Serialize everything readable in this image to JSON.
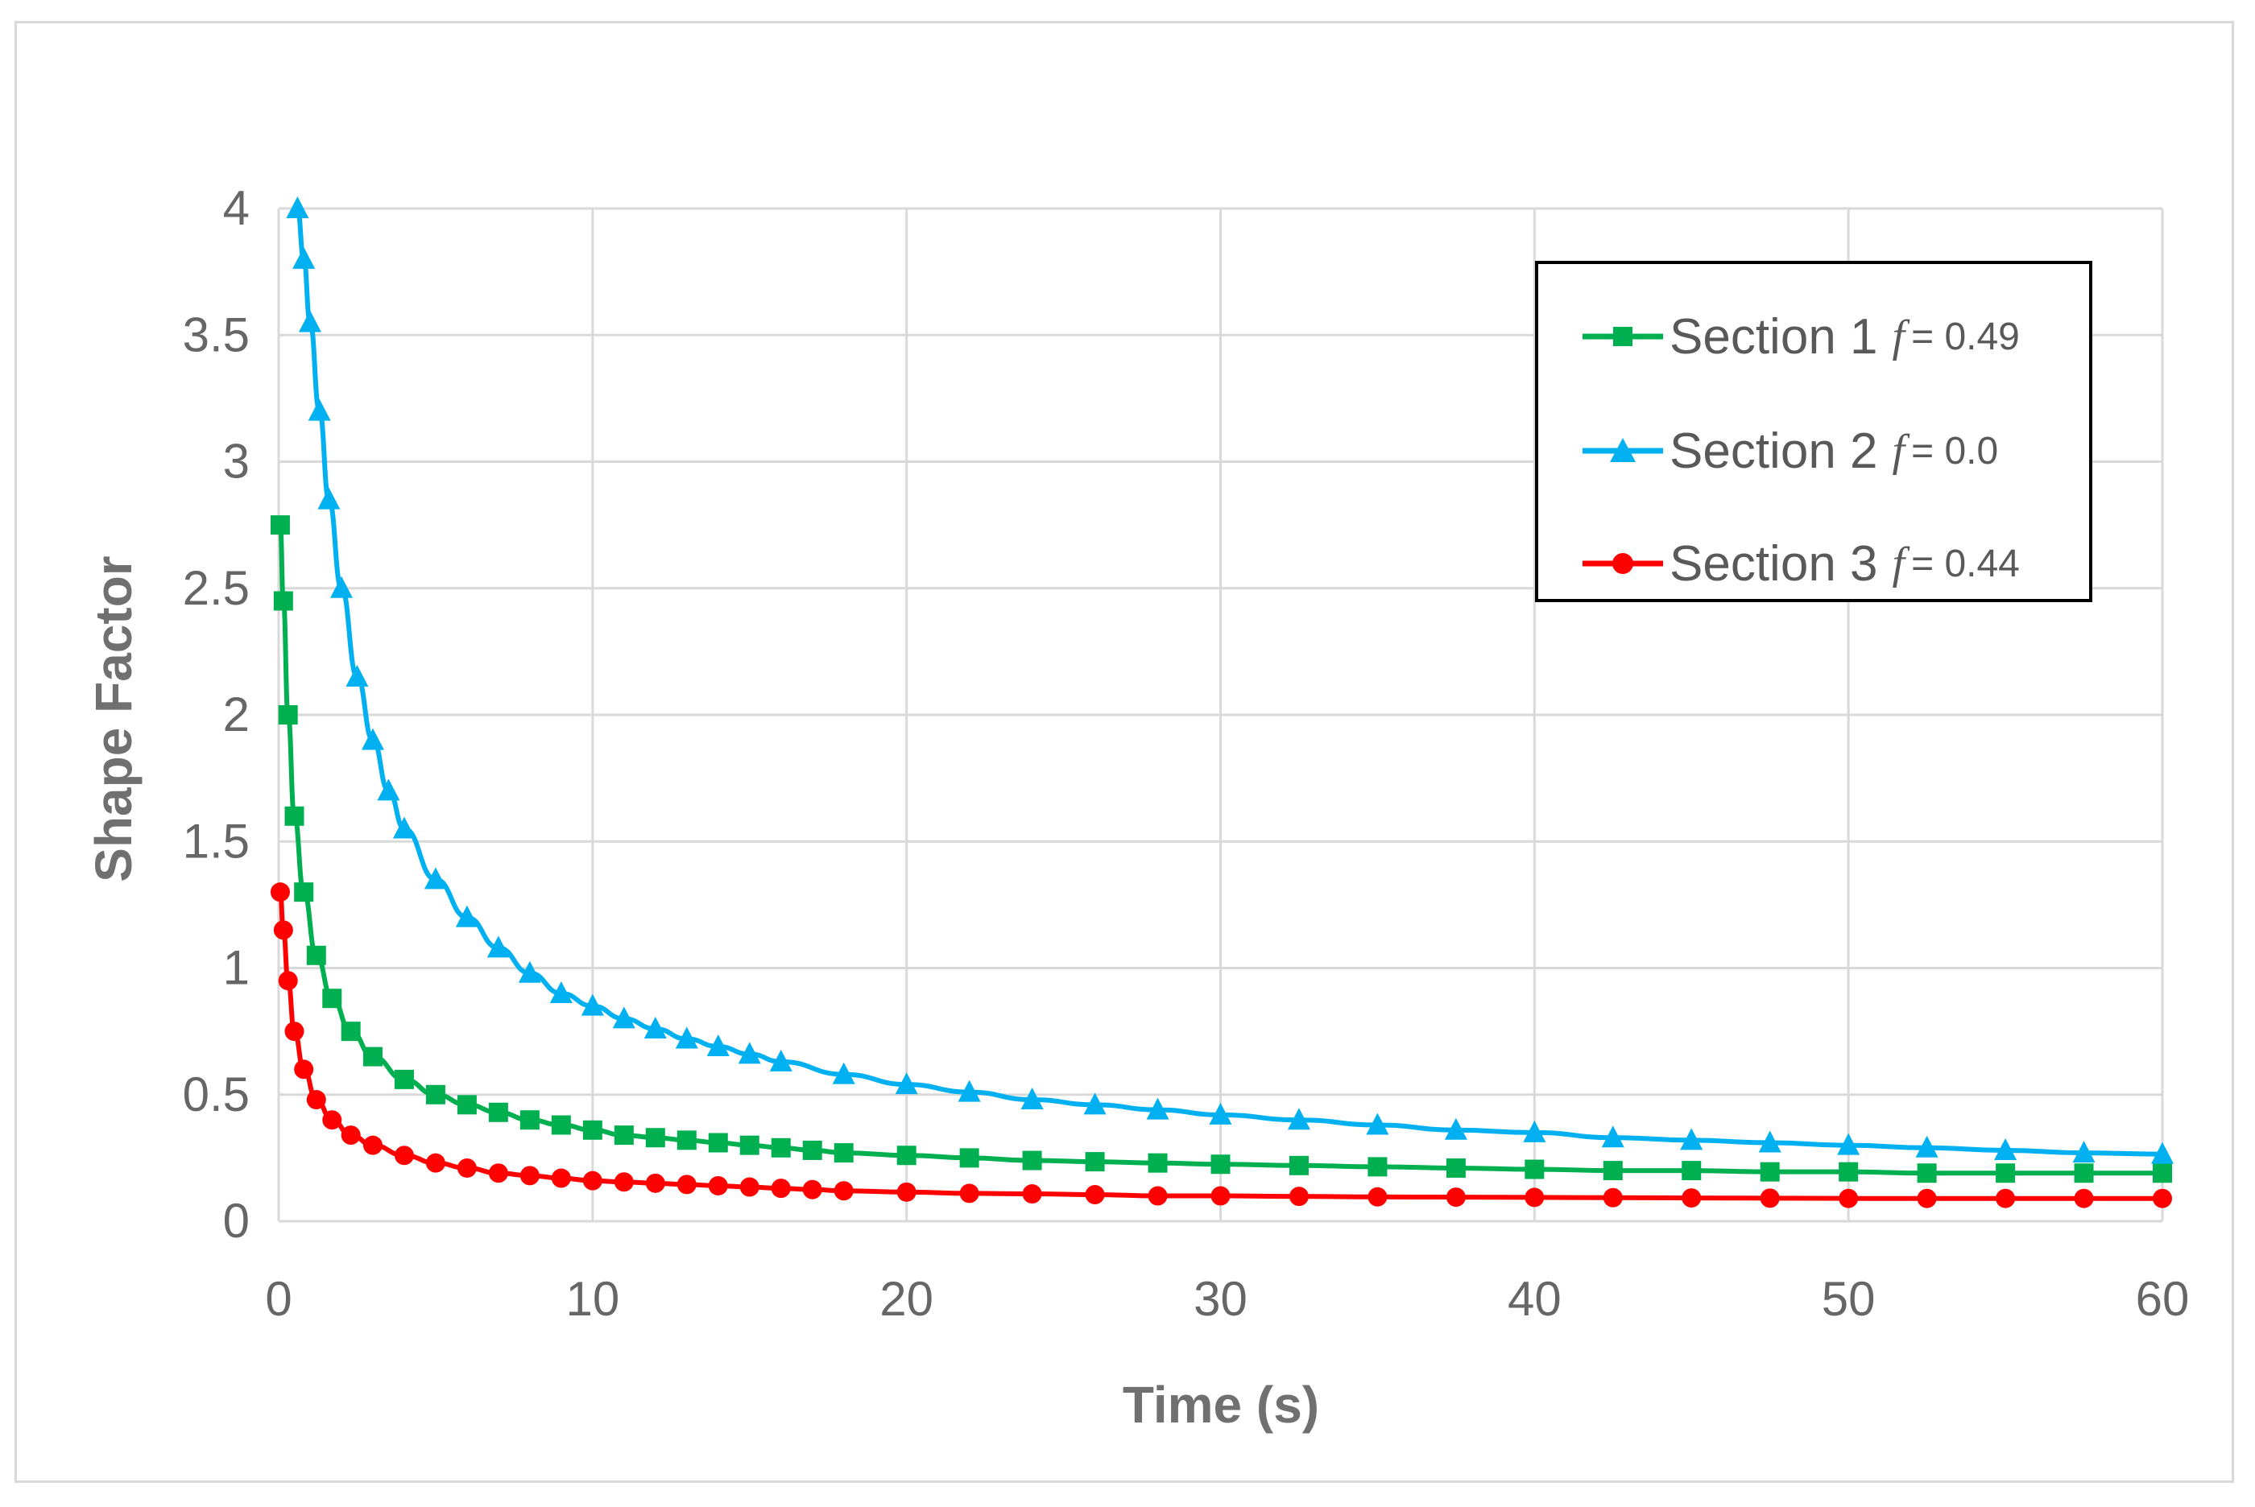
{
  "chart_data": {
    "type": "line",
    "title": "",
    "xlabel": "Time (s)",
    "ylabel": "Shape Factor",
    "xlim": [
      0,
      60
    ],
    "ylim": [
      0,
      4
    ],
    "x_ticks": [
      "0",
      "10",
      "20",
      "30",
      "40",
      "50",
      "60"
    ],
    "y_ticks": [
      "0",
      "0.5",
      "1",
      "1.5",
      "2",
      "2.5",
      "3",
      "3.5",
      "4"
    ],
    "grid": true,
    "legend_position": "top-right",
    "series": [
      {
        "name": "Section 1",
        "f_label": "f",
        "f_value": "= 0.49",
        "color": "#00b050",
        "marker": "square",
        "x": [
          0.05,
          0.15,
          0.3,
          0.5,
          0.8,
          1.2,
          1.7,
          2.3,
          3,
          4,
          5,
          6,
          7,
          8,
          9,
          10,
          11,
          12,
          13,
          14,
          15,
          16,
          17,
          18,
          20,
          22,
          24,
          26,
          28,
          30,
          32.5,
          35,
          37.5,
          40,
          42.5,
          45,
          47.5,
          50,
          52.5,
          55,
          57.5,
          60
        ],
        "y": [
          2.75,
          2.45,
          2.0,
          1.6,
          1.3,
          1.05,
          0.88,
          0.75,
          0.65,
          0.56,
          0.5,
          0.46,
          0.43,
          0.4,
          0.38,
          0.36,
          0.34,
          0.33,
          0.32,
          0.31,
          0.3,
          0.29,
          0.28,
          0.27,
          0.26,
          0.25,
          0.24,
          0.235,
          0.23,
          0.225,
          0.22,
          0.215,
          0.21,
          0.205,
          0.2,
          0.2,
          0.195,
          0.195,
          0.19,
          0.19,
          0.19,
          0.19
        ]
      },
      {
        "name": "Section 2",
        "f_label": "f",
        "f_value": "= 0.0",
        "color": "#00b0f0",
        "marker": "triangle",
        "x": [
          0.6,
          0.8,
          1,
          1.3,
          1.6,
          2,
          2.5,
          3,
          3.5,
          4,
          5,
          6,
          7,
          8,
          9,
          10,
          11,
          12,
          13,
          14,
          15,
          16,
          18,
          20,
          22,
          24,
          26,
          28,
          30,
          32.5,
          35,
          37.5,
          40,
          42.5,
          45,
          47.5,
          50,
          52.5,
          55,
          57.5,
          60
        ],
        "y": [
          4.0,
          3.8,
          3.55,
          3.2,
          2.85,
          2.5,
          2.15,
          1.9,
          1.7,
          1.55,
          1.35,
          1.2,
          1.08,
          0.98,
          0.9,
          0.85,
          0.8,
          0.76,
          0.72,
          0.69,
          0.66,
          0.63,
          0.58,
          0.54,
          0.51,
          0.48,
          0.46,
          0.44,
          0.42,
          0.4,
          0.38,
          0.36,
          0.35,
          0.33,
          0.32,
          0.31,
          0.3,
          0.29,
          0.28,
          0.27,
          0.265
        ]
      },
      {
        "name": "Section 3",
        "f_label": "f",
        "f_value": "= 0.44",
        "color": "#ff0000",
        "marker": "circle",
        "x": [
          0.05,
          0.15,
          0.3,
          0.5,
          0.8,
          1.2,
          1.7,
          2.3,
          3,
          4,
          5,
          6,
          7,
          8,
          9,
          10,
          11,
          12,
          13,
          14,
          15,
          16,
          17,
          18,
          20,
          22,
          24,
          26,
          28,
          30,
          32.5,
          35,
          37.5,
          40,
          42.5,
          45,
          47.5,
          50,
          52.5,
          55,
          57.5,
          60
        ],
        "y": [
          1.3,
          1.15,
          0.95,
          0.75,
          0.6,
          0.48,
          0.4,
          0.34,
          0.3,
          0.26,
          0.23,
          0.21,
          0.19,
          0.18,
          0.17,
          0.16,
          0.155,
          0.15,
          0.145,
          0.14,
          0.135,
          0.13,
          0.125,
          0.12,
          0.115,
          0.11,
          0.108,
          0.105,
          0.1,
          0.1,
          0.098,
          0.096,
          0.095,
          0.094,
          0.093,
          0.092,
          0.091,
          0.09,
          0.09,
          0.09,
          0.09,
          0.09
        ]
      }
    ]
  }
}
